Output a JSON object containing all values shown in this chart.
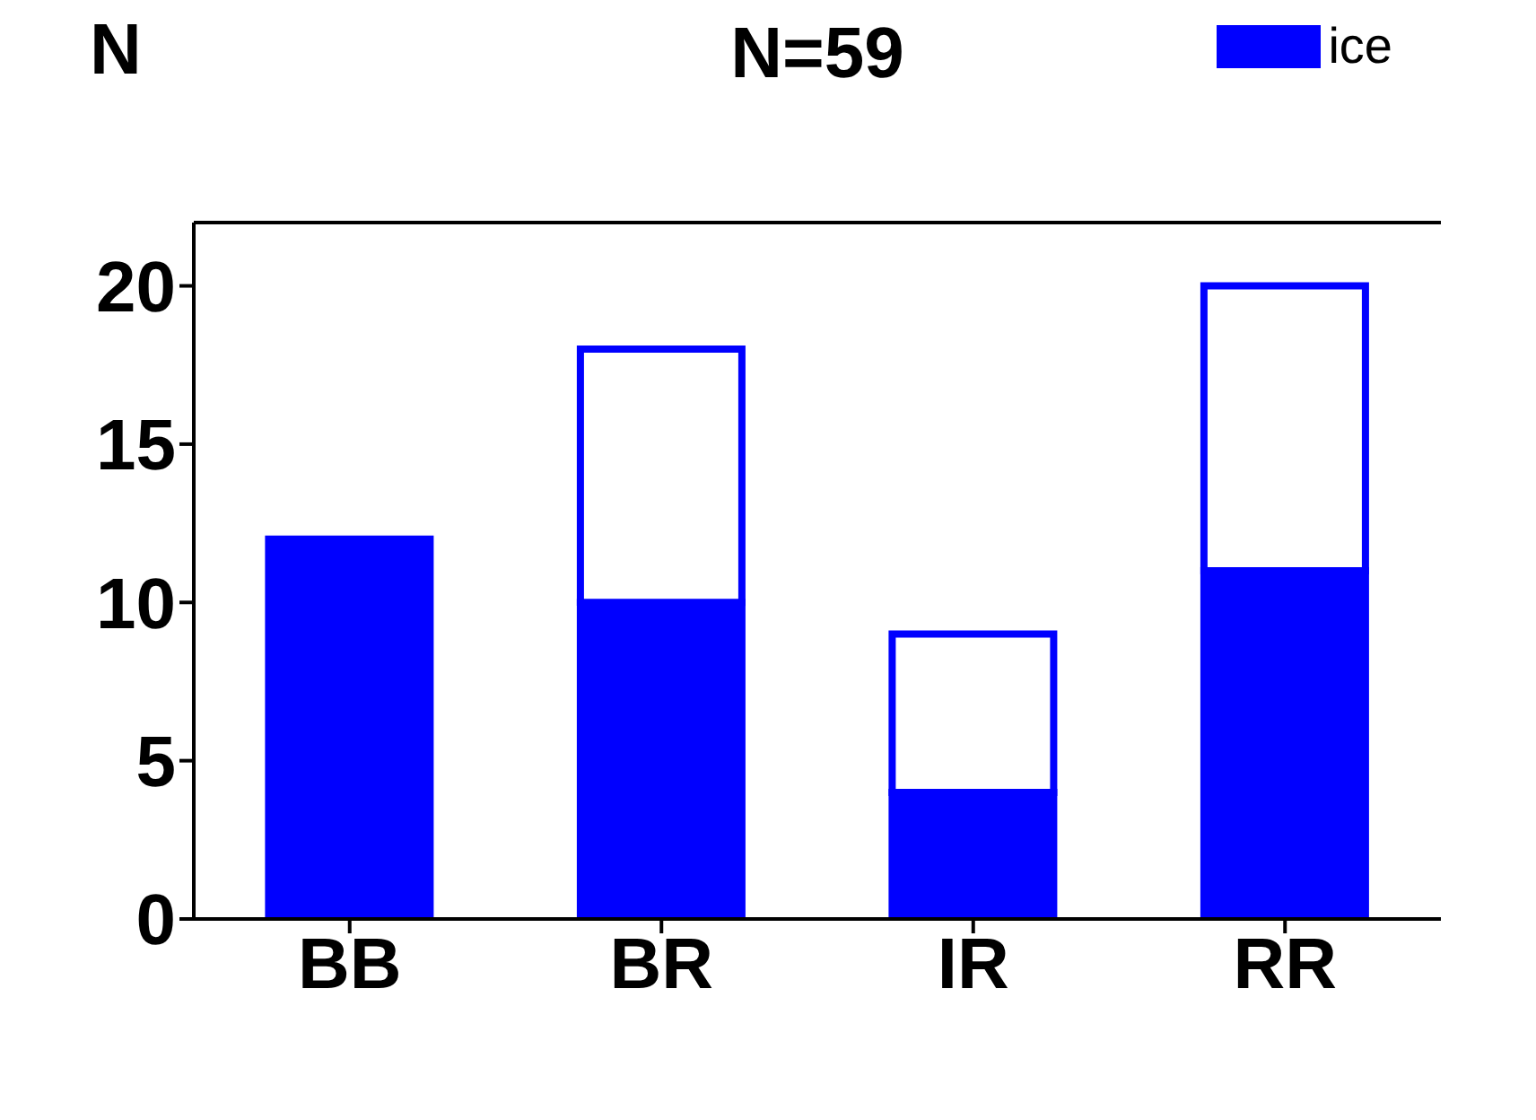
{
  "chart_data": {
    "type": "bar",
    "title": "N=59",
    "ylabel": "N",
    "categories": [
      "BB",
      "BR",
      "IR",
      "RR"
    ],
    "stacked": true,
    "series": [
      {
        "name": "ice",
        "color": "#0000ff",
        "values": [
          12,
          10,
          4,
          11
        ]
      },
      {
        "color": "#0000ff",
        "values": [
          0,
          8,
          5,
          9
        ]
      }
    ],
    "ylim": [
      0,
      22
    ],
    "yticks": [
      0,
      5,
      10,
      15,
      20
    ],
    "legend": "top right",
    "grid": false
  }
}
